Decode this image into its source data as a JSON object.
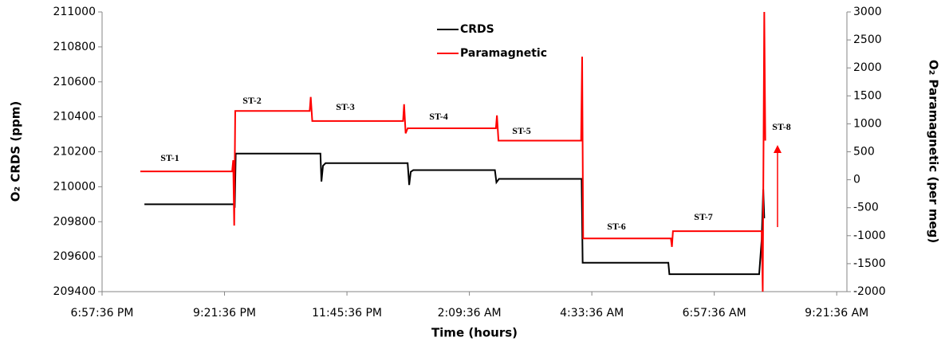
{
  "chart_data": {
    "type": "line",
    "xlabel": "Time (hours)",
    "ylabel": "O₂ CRDS (ppm)",
    "y2label": "O₂ Paramagnetic (per meg)",
    "xlim": [
      0,
      14.6
    ],
    "xticks": [
      {
        "value": 0,
        "label": "6:57:36 PM"
      },
      {
        "value": 2.4,
        "label": "9:21:36 PM"
      },
      {
        "value": 4.8,
        "label": "11:45:36 PM"
      },
      {
        "value": 7.2,
        "label": "2:09:36 AM"
      },
      {
        "value": 9.6,
        "label": "4:33:36 AM"
      },
      {
        "value": 12,
        "label": "6:57:36 AM"
      },
      {
        "value": 14.4,
        "label": "9:21:36 AM"
      }
    ],
    "ylim": [
      209400,
      211000
    ],
    "yticks": [
      209400,
      209600,
      209800,
      210000,
      210200,
      210400,
      210600,
      210800,
      211000
    ],
    "y2lim": [
      -2000,
      3000
    ],
    "y2ticks": [
      -2000,
      -1500,
      -1000,
      -500,
      0,
      500,
      1000,
      1500,
      2000,
      2500,
      3000
    ],
    "series": [
      {
        "name": "CRDS",
        "color": "#000000",
        "axis": "y",
        "x": [
          0.83,
          2.59,
          2.6,
          2.62,
          4.28,
          4.3,
          4.33,
          4.38,
          5.99,
          6.02,
          6.05,
          6.1,
          7.7,
          7.73,
          7.78,
          9.4,
          9.42,
          11.1,
          11.12,
          12.88,
          12.93,
          12.96,
          12.98
        ],
        "values": [
          209900,
          209900,
          209880,
          210190,
          210190,
          210030,
          210120,
          210135,
          210135,
          210010,
          210085,
          210095,
          210095,
          210025,
          210045,
          210045,
          209565,
          209565,
          209500,
          209500,
          209700,
          209985,
          209820
        ]
      },
      {
        "name": "Paramagnetic",
        "color": "#ff0000",
        "axis": "y2",
        "x": [
          0.75,
          2.55,
          2.57,
          2.59,
          2.61,
          4.07,
          4.09,
          4.12,
          5.9,
          5.92,
          5.95,
          5.99,
          7.72,
          7.74,
          7.77,
          9.39,
          9.41,
          9.43,
          11.15,
          11.17,
          11.19,
          12.93,
          12.95,
          12.98,
          13.0
        ],
        "values": [
          150,
          150,
          350,
          -820,
          1230,
          1230,
          1480,
          1050,
          1050,
          1350,
          830,
          920,
          920,
          1150,
          700,
          700,
          2200,
          -1050,
          -1050,
          -1200,
          -920,
          -920,
          -2000,
          3000,
          700
        ]
      }
    ],
    "annotations": [
      "ST-1",
      "ST-2",
      "ST-3",
      "ST-4",
      "ST-5",
      "ST-6",
      "ST-7",
      "ST-8"
    ]
  }
}
